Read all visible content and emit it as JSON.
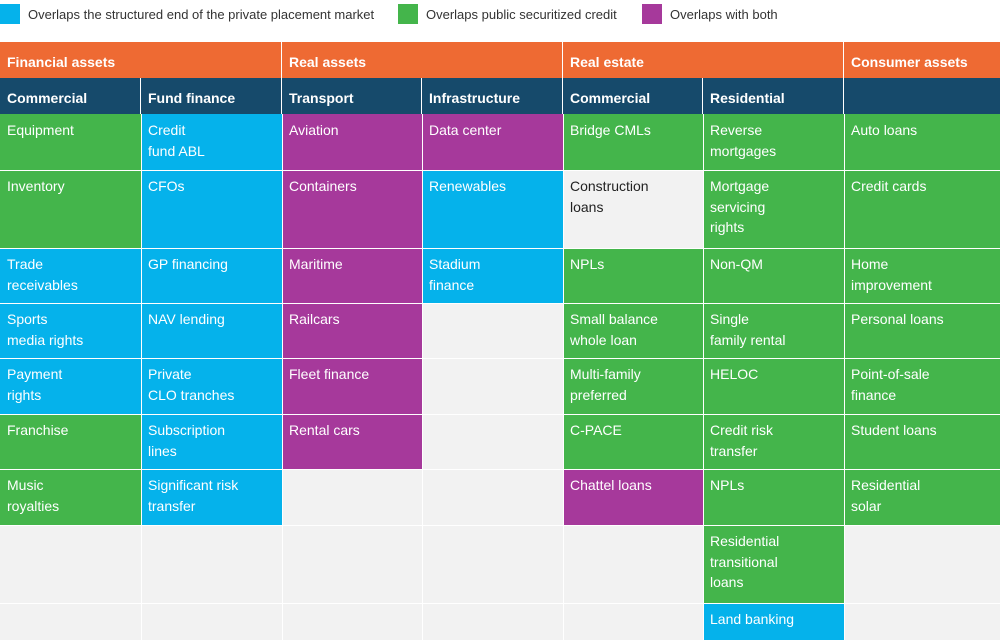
{
  "legend": [
    {
      "label": "Overlaps the structured end of the private placement market",
      "color": "#05b2eb"
    },
    {
      "label": "Overlaps public securitized credit",
      "color": "#44b54b"
    },
    {
      "label": "Overlaps with both",
      "color": "#a6399b"
    }
  ],
  "groups": [
    "Financial assets",
    "Real assets",
    "Real estate",
    "Consumer assets"
  ],
  "subheaders": [
    "Commercial",
    "Fund finance",
    "Transport",
    "Infrastructure",
    "Commercial",
    "Residential",
    ""
  ],
  "columns": [
    [
      {
        "text": "Equipment",
        "cat": "green"
      },
      {
        "text": "Inventory",
        "cat": "green"
      },
      {
        "text": "Trade\nreceivables",
        "cat": "blue"
      },
      {
        "text": "Sports\nmedia rights",
        "cat": "blue"
      },
      {
        "text": "Payment\nrights",
        "cat": "blue"
      },
      {
        "text": "Franchise",
        "cat": "green"
      },
      {
        "text": "Music\nroyalties",
        "cat": "green"
      }
    ],
    [
      {
        "text": "Credit\nfund ABL",
        "cat": "blue"
      },
      {
        "text": "CFOs",
        "cat": "blue"
      },
      {
        "text": "GP financing",
        "cat": "blue"
      },
      {
        "text": "NAV lending",
        "cat": "blue"
      },
      {
        "text": "Private\nCLO tranches",
        "cat": "blue"
      },
      {
        "text": "Subscription\nlines",
        "cat": "blue"
      },
      {
        "text": "Significant risk\ntransfer",
        "cat": "blue"
      }
    ],
    [
      {
        "text": "Aviation",
        "cat": "purple"
      },
      {
        "text": "Containers",
        "cat": "purple"
      },
      {
        "text": "Maritime",
        "cat": "purple"
      },
      {
        "text": "Railcars",
        "cat": "purple"
      },
      {
        "text": "Fleet finance",
        "cat": "purple"
      },
      {
        "text": "Rental cars",
        "cat": "purple"
      }
    ],
    [
      {
        "text": "Data center",
        "cat": "purple"
      },
      {
        "text": "Renewables",
        "cat": "blue"
      },
      {
        "text": "Stadium\nfinance",
        "cat": "blue"
      }
    ],
    [
      {
        "text": "Bridge CMLs",
        "cat": "green"
      },
      {
        "text": "Construction\nloans",
        "cat": "white"
      },
      {
        "text": "NPLs",
        "cat": "green"
      },
      {
        "text": "Small balance\nwhole loan",
        "cat": "green"
      },
      {
        "text": "Multi-family\npreferred",
        "cat": "green"
      },
      {
        "text": "C-PACE",
        "cat": "green"
      },
      {
        "text": "Chattel loans",
        "cat": "purple"
      }
    ],
    [
      {
        "text": "Reverse\nmortgages",
        "cat": "green"
      },
      {
        "text": "Mortgage\nservicing\nrights",
        "cat": "green"
      },
      {
        "text": "Non-QM",
        "cat": "green"
      },
      {
        "text": "Single\nfamily rental",
        "cat": "green"
      },
      {
        "text": "HELOC",
        "cat": "green"
      },
      {
        "text": "Credit risk\ntransfer",
        "cat": "green"
      },
      {
        "text": "NPLs",
        "cat": "green"
      },
      {
        "text": "Residential\ntransitional\nloans",
        "cat": "green"
      },
      {
        "text": "Land banking",
        "cat": "blue"
      }
    ],
    [
      {
        "text": "Auto loans",
        "cat": "green"
      },
      {
        "text": "Credit cards",
        "cat": "green"
      },
      {
        "text": "Home\nimprovement",
        "cat": "green"
      },
      {
        "text": "Personal loans",
        "cat": "green"
      },
      {
        "text": "Point-of-sale\nfinance",
        "cat": "green"
      },
      {
        "text": "Student loans",
        "cat": "green"
      },
      {
        "text": "Residential\nsolar",
        "cat": "green"
      }
    ]
  ]
}
